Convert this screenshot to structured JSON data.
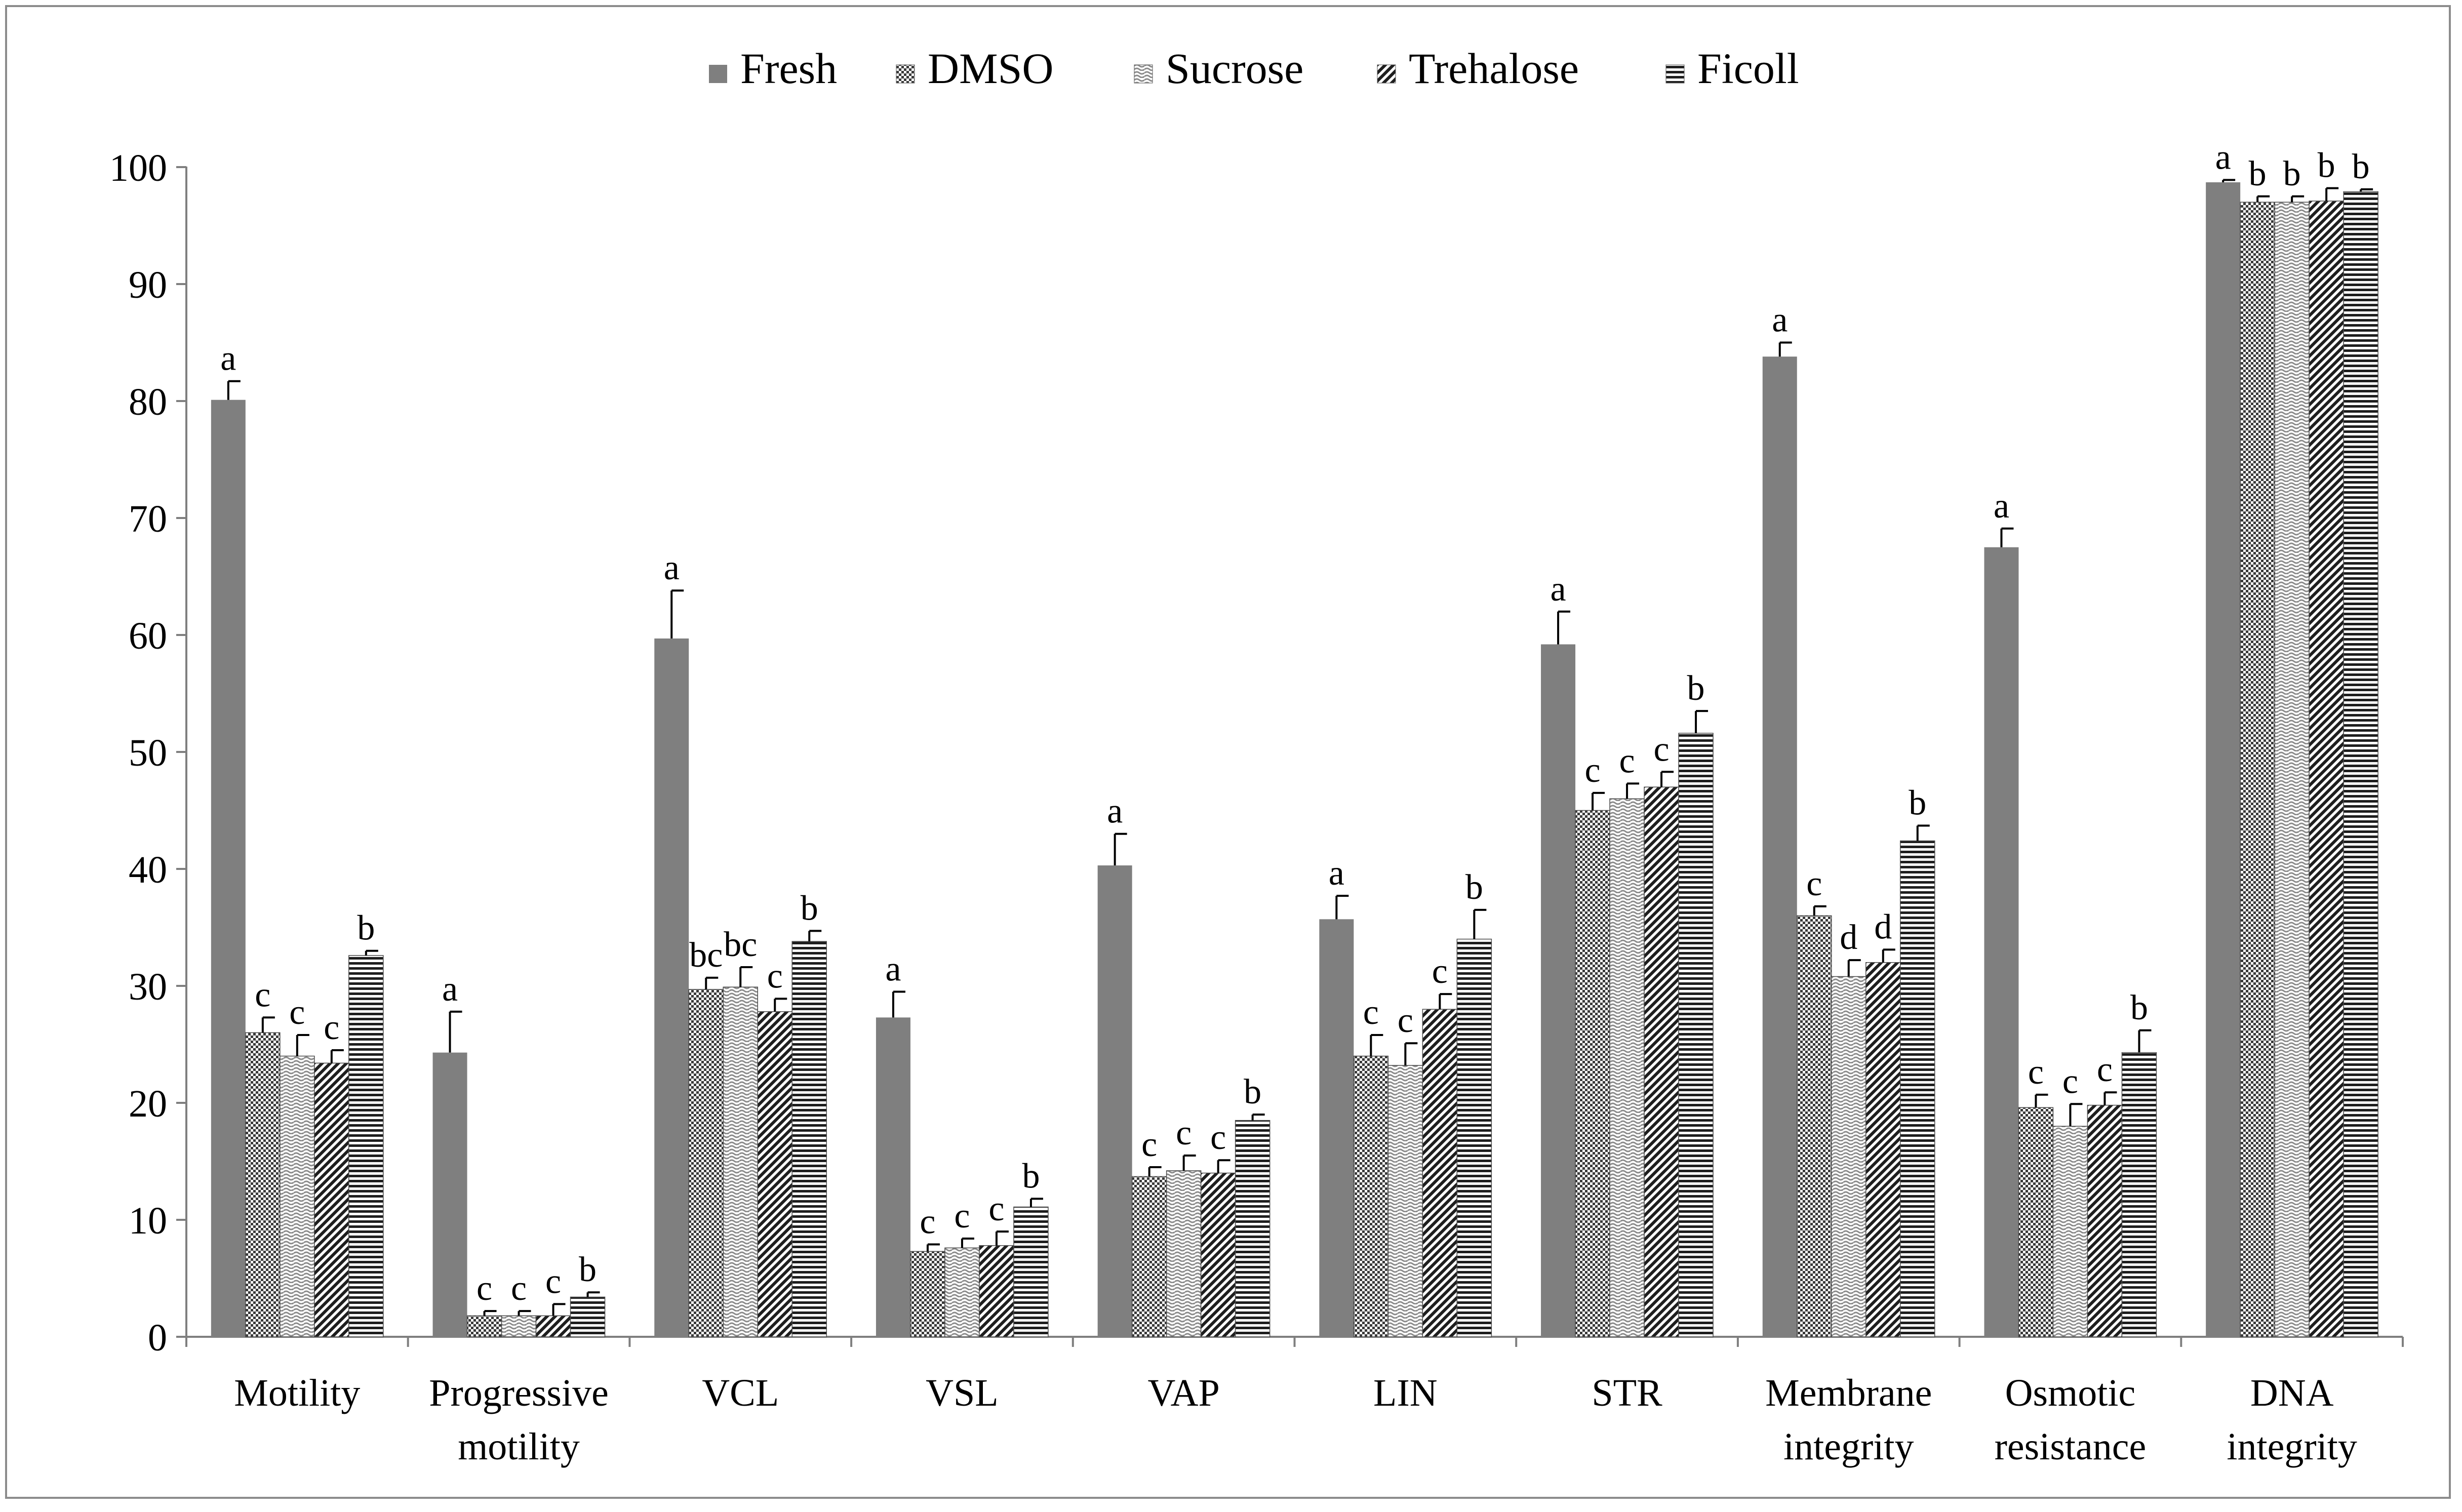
{
  "chart_data": {
    "type": "bar",
    "title": "",
    "xlabel": "",
    "ylabel": "",
    "ylim": [
      0,
      100
    ],
    "yticks": [
      0,
      10,
      20,
      30,
      40,
      50,
      60,
      70,
      80,
      90,
      100
    ],
    "grid": false,
    "legend_position": "top-center",
    "categories": [
      [
        "Motility"
      ],
      [
        "Progressive",
        "motility"
      ],
      [
        "VCL"
      ],
      [
        "VSL"
      ],
      [
        "VAP"
      ],
      [
        "LIN"
      ],
      [
        "STR"
      ],
      [
        "Membrane",
        "integrity"
      ],
      [
        "Osmotic",
        "resistance"
      ],
      [
        "DNA",
        "integrity"
      ]
    ],
    "series": [
      {
        "name": "Fresh",
        "pattern": "solid",
        "values": [
          80.1,
          24.3,
          59.7,
          27.3,
          40.3,
          35.7,
          59.2,
          83.8,
          67.5,
          98.7
        ],
        "errors": [
          1.6,
          3.5,
          4.1,
          2.2,
          2.7,
          2.0,
          2.8,
          1.2,
          1.6,
          0.2
        ],
        "letters": [
          "a",
          "a",
          "a",
          "a",
          "a",
          "a",
          "a",
          "a",
          "a",
          "a"
        ]
      },
      {
        "name": "DMSO",
        "pattern": "checker",
        "values": [
          26.0,
          1.8,
          29.7,
          7.3,
          13.7,
          24.0,
          45.0,
          36.0,
          19.6,
          97.0
        ],
        "errors": [
          1.3,
          0.4,
          1.0,
          0.6,
          0.8,
          1.8,
          1.5,
          0.8,
          1.1,
          0.5
        ],
        "letters": [
          "c",
          "c",
          "bc",
          "c",
          "c",
          "c",
          "c",
          "c",
          "c",
          "b"
        ]
      },
      {
        "name": "Sucrose",
        "pattern": "wave",
        "values": [
          24.0,
          1.8,
          29.9,
          7.6,
          14.2,
          23.2,
          46.0,
          30.8,
          18.0,
          97.0
        ],
        "errors": [
          1.8,
          0.4,
          1.7,
          0.8,
          1.3,
          1.9,
          1.3,
          1.4,
          1.9,
          0.5
        ],
        "letters": [
          "c",
          "c",
          "bc",
          "c",
          "c",
          "c",
          "c",
          "d",
          "c",
          "b"
        ]
      },
      {
        "name": "Trehalose",
        "pattern": "diagonal",
        "values": [
          23.4,
          1.8,
          27.8,
          7.8,
          14.0,
          28.0,
          47.0,
          32.0,
          19.8,
          97.1
        ],
        "errors": [
          1.1,
          1.0,
          1.1,
          1.2,
          1.1,
          1.3,
          1.3,
          1.1,
          1.1,
          1.1
        ],
        "letters": [
          "c",
          "c",
          "c",
          "c",
          "c",
          "c",
          "c",
          "d",
          "c",
          "b"
        ]
      },
      {
        "name": "Ficoll",
        "pattern": "horizontal",
        "values": [
          32.6,
          3.4,
          33.8,
          11.1,
          18.5,
          34.0,
          51.6,
          42.4,
          24.3,
          97.9
        ],
        "errors": [
          0.4,
          0.4,
          0.9,
          0.7,
          0.5,
          2.5,
          1.9,
          1.3,
          1.9,
          0.2
        ],
        "letters": [
          "b",
          "b",
          "b",
          "b",
          "b",
          "b",
          "b",
          "b",
          "b",
          "b"
        ]
      }
    ]
  },
  "style": {
    "bar_color": "#7f7f7f",
    "axis_color": "#7f7f7f",
    "text_color": "#000000",
    "frame_color": "#8c8c8c"
  }
}
